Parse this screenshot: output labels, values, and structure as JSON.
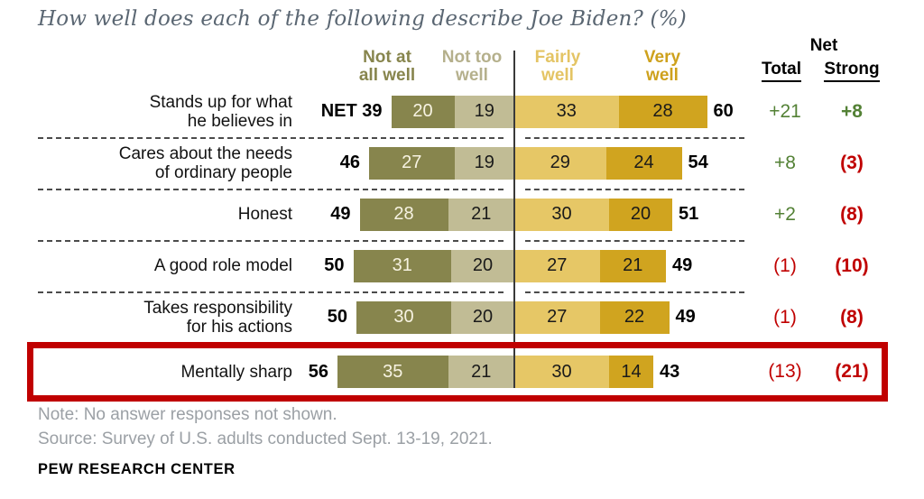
{
  "title": "How well does each of the following describe Joe Biden? (%)",
  "column_headers": {
    "not_at_all_well": {
      "line1": "Not at",
      "line2": "all well",
      "color": "#87854D"
    },
    "not_too_well": {
      "line1": "Not too",
      "line2": "well",
      "color": "#B5B08C"
    },
    "fairly_well": {
      "line1": "Fairly",
      "line2": "well",
      "color": "#E4C464"
    },
    "very_well": {
      "line1": "Very",
      "line2": "well",
      "color": "#CEA11C"
    }
  },
  "net_headers": {
    "net": "Net",
    "total": "Total",
    "strong": "Strong"
  },
  "chart_data": {
    "type": "bar",
    "subtype": "diverging-stacked-horizontal",
    "unit": "percent",
    "series_names": [
      "Not at all well",
      "Not too well",
      "Fairly well",
      "Very well"
    ],
    "colors": {
      "not_at_all_well": "#87854D",
      "not_too_well": "#C1BC95",
      "fairly_well": "#E6C766",
      "very_well": "#D0A41F",
      "net_positive": "#538135",
      "net_negative": "#C00000",
      "highlight_box": "#C00000"
    },
    "categories": [
      "Stands up for what he believes in",
      "Cares about the needs of ordinary people",
      "Honest",
      "A good role model",
      "Takes responsibility for his actions",
      "Mentally sharp"
    ],
    "rows": [
      {
        "label_lines": [
          "Stands up for what",
          "he believes in"
        ],
        "net_prefix": "NET",
        "left_total": 39,
        "not_at_all_well": 20,
        "not_too_well": 19,
        "fairly_well": 33,
        "very_well": 28,
        "right_total": 60,
        "net_total": "+21",
        "net_total_color": "#538135",
        "net_strong": "+8",
        "net_strong_color": "#538135",
        "highlighted": false
      },
      {
        "label_lines": [
          "Cares about the needs",
          "of ordinary people"
        ],
        "net_prefix": "",
        "left_total": 46,
        "not_at_all_well": 27,
        "not_too_well": 19,
        "fairly_well": 29,
        "very_well": 24,
        "right_total": 54,
        "net_total": "+8",
        "net_total_color": "#538135",
        "net_strong": "(3)",
        "net_strong_color": "#C00000",
        "highlighted": false
      },
      {
        "label_lines": [
          "Honest"
        ],
        "net_prefix": "",
        "left_total": 49,
        "not_at_all_well": 28,
        "not_too_well": 21,
        "fairly_well": 30,
        "very_well": 20,
        "right_total": 51,
        "net_total": "+2",
        "net_total_color": "#538135",
        "net_strong": "(8)",
        "net_strong_color": "#C00000",
        "highlighted": false
      },
      {
        "label_lines": [
          "A good role model"
        ],
        "net_prefix": "",
        "left_total": 50,
        "not_at_all_well": 31,
        "not_too_well": 20,
        "fairly_well": 27,
        "very_well": 21,
        "right_total": 49,
        "net_total": "(1)",
        "net_total_color": "#C00000",
        "net_strong": "(10)",
        "net_strong_color": "#C00000",
        "highlighted": false
      },
      {
        "label_lines": [
          "Takes responsibility",
          "for his actions"
        ],
        "net_prefix": "",
        "left_total": 50,
        "not_at_all_well": 30,
        "not_too_well": 20,
        "fairly_well": 27,
        "very_well": 22,
        "right_total": 49,
        "net_total": "(1)",
        "net_total_color": "#C00000",
        "net_strong": "(8)",
        "net_strong_color": "#C00000",
        "highlighted": false
      },
      {
        "label_lines": [
          "Mentally sharp"
        ],
        "net_prefix": "",
        "left_total": 56,
        "not_at_all_well": 35,
        "not_too_well": 21,
        "fairly_well": 30,
        "very_well": 14,
        "right_total": 43,
        "net_total": "(13)",
        "net_total_color": "#C00000",
        "net_strong": "(21)",
        "net_strong_color": "#C00000",
        "highlighted": true
      }
    ]
  },
  "footer": {
    "note": "Note: No answer responses not shown.",
    "source": "Source: Survey of U.S. adults conducted Sept. 13-19, 2021.",
    "brand": "PEW RESEARCH CENTER"
  }
}
